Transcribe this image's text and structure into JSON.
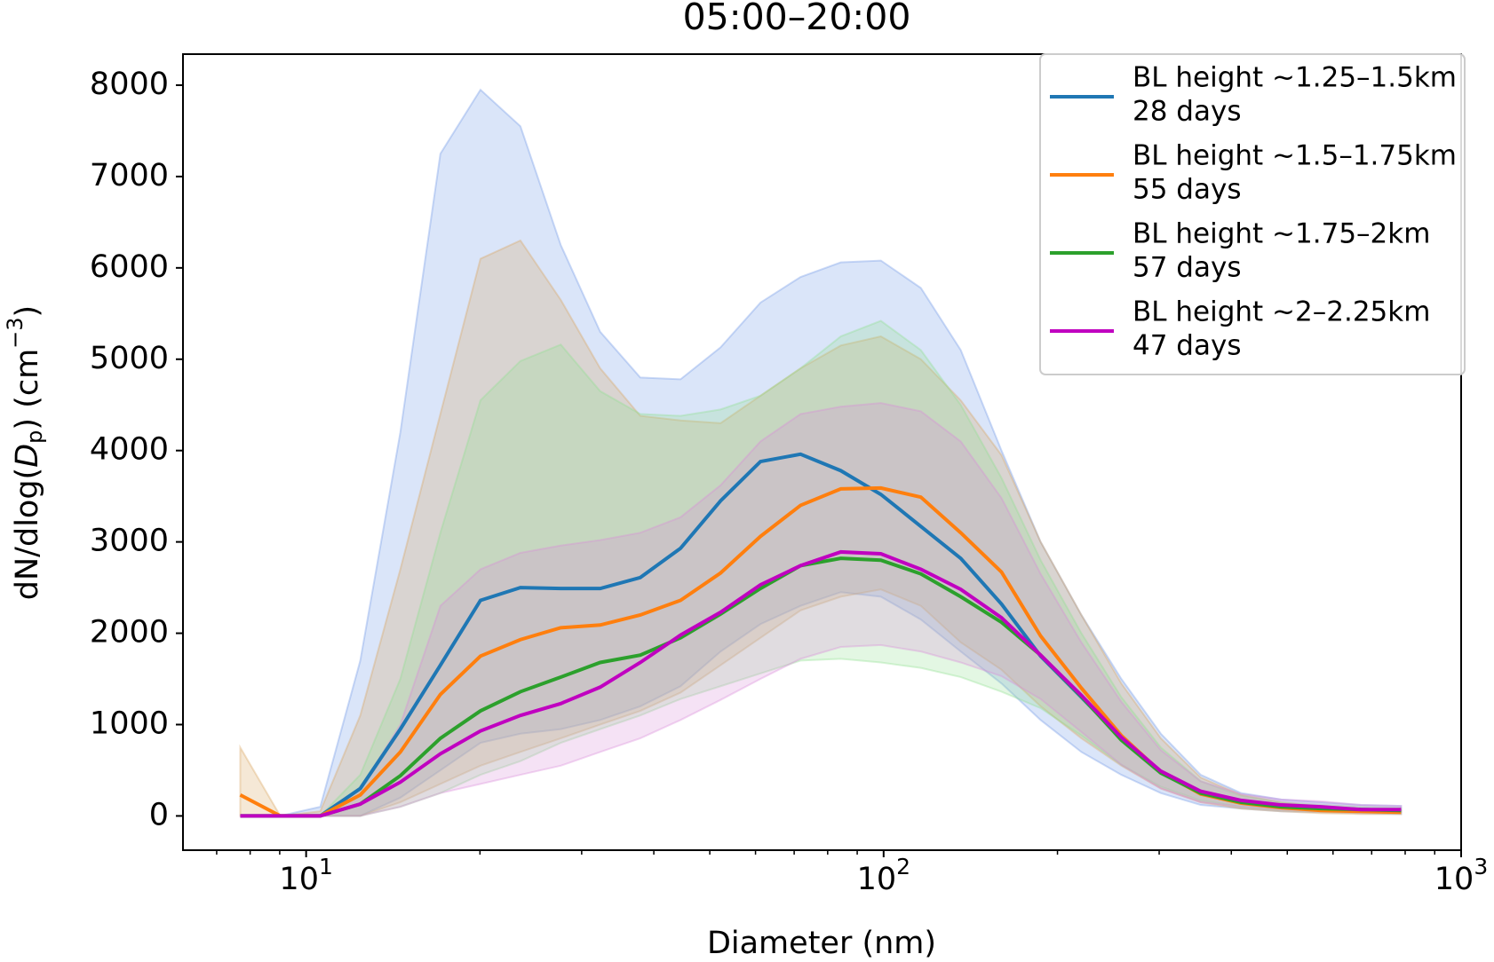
{
  "chart_data": {
    "type": "line",
    "title": "05:00–20:00",
    "xlabel": "Diameter (nm)",
    "ylabel": [
      "dN/dlog(",
      "D",
      "p",
      ") (cm",
      "−3",
      ")"
    ],
    "xscale": "log",
    "xlim": [
      6.12,
      1000
    ],
    "ylim": [
      -375,
      8340
    ],
    "xticks": [
      {
        "value": 10,
        "label": "10",
        "exponent": "1"
      },
      {
        "value": 100,
        "label": "10",
        "exponent": "2"
      },
      {
        "value": 1000,
        "label": "10",
        "exponent": "3"
      }
    ],
    "xminor_ticks": [
      7,
      8,
      9,
      20,
      30,
      40,
      50,
      60,
      70,
      80,
      90,
      200,
      300,
      400,
      500,
      600,
      700,
      800,
      900
    ],
    "yticks": [
      0,
      1000,
      2000,
      3000,
      4000,
      5000,
      6000,
      7000,
      8000
    ],
    "legend": "upper right",
    "x": [
      7.69,
      9.02,
      10.58,
      12.41,
      14.56,
      17.08,
      20.04,
      23.5,
      27.6,
      32.3,
      37.9,
      44.5,
      52.2,
      61.2,
      71.8,
      84.3,
      98.9,
      116,
      136,
      160,
      187,
      220,
      258,
      302,
      354,
      416,
      488,
      572,
      671,
      787
    ],
    "series": [
      {
        "name": "BL height ~1.25–1.5km",
        "days_label": "28 days",
        "color": "#1f77b4",
        "band_color": "#6d96e6",
        "values": [
          0,
          0,
          0,
          300,
          950,
          1650,
          2360,
          2500,
          2490,
          2490,
          2610,
          2930,
          3450,
          3880,
          3960,
          3780,
          3520,
          3170,
          2820,
          2320,
          1750,
          1300,
          850,
          480,
          260,
          160,
          110,
          90,
          70,
          60
        ],
        "upper": [
          0,
          0,
          100,
          1700,
          4200,
          7250,
          7950,
          7550,
          6250,
          5300,
          4800,
          4780,
          5130,
          5620,
          5900,
          6060,
          6080,
          5780,
          5100,
          4000,
          3000,
          2200,
          1500,
          900,
          450,
          250,
          180,
          150,
          120,
          110
        ],
        "lower": [
          0,
          0,
          0,
          0,
          200,
          500,
          800,
          900,
          950,
          1050,
          1200,
          1420,
          1800,
          2100,
          2300,
          2450,
          2400,
          2150,
          1800,
          1450,
          1050,
          700,
          450,
          250,
          120,
          80,
          50,
          40,
          30,
          20
        ]
      },
      {
        "name": "BL height ~1.5–1.75km",
        "days_label": "55 days",
        "color": "#ff7f0e",
        "band_color": "#d9a35c",
        "values": [
          230,
          0,
          0,
          230,
          700,
          1330,
          1750,
          1930,
          2060,
          2090,
          2200,
          2360,
          2660,
          3060,
          3400,
          3580,
          3590,
          3490,
          3100,
          2670,
          1970,
          1400,
          880,
          480,
          240,
          140,
          90,
          60,
          50,
          40
        ],
        "upper": [
          750,
          0,
          50,
          1100,
          2700,
          4400,
          6100,
          6300,
          5650,
          4900,
          4380,
          4330,
          4300,
          4600,
          4900,
          5150,
          5250,
          5000,
          4550,
          3950,
          3000,
          2200,
          1450,
          850,
          420,
          230,
          150,
          100,
          80,
          60
        ],
        "lower": [
          0,
          0,
          0,
          0,
          150,
          350,
          550,
          700,
          850,
          1000,
          1150,
          1350,
          1650,
          1950,
          2250,
          2400,
          2480,
          2300,
          1900,
          1600,
          1200,
          850,
          550,
          300,
          150,
          80,
          50,
          30,
          20,
          20
        ]
      },
      {
        "name": "BL height ~1.75–2km",
        "days_label": "57 days",
        "color": "#2ca02c",
        "band_color": "#8fe08f",
        "values": [
          0,
          0,
          0,
          130,
          440,
          850,
          1150,
          1360,
          1520,
          1680,
          1760,
          1950,
          2210,
          2490,
          2740,
          2820,
          2800,
          2650,
          2400,
          2120,
          1760,
          1310,
          830,
          470,
          250,
          150,
          100,
          80,
          70,
          60
        ],
        "upper": [
          0,
          0,
          0,
          450,
          1500,
          3100,
          4550,
          4980,
          5160,
          4650,
          4400,
          4380,
          4450,
          4600,
          4900,
          5250,
          5420,
          5100,
          4500,
          3700,
          2800,
          2000,
          1300,
          750,
          380,
          220,
          150,
          120,
          100,
          90
        ],
        "lower": [
          0,
          0,
          0,
          0,
          100,
          250,
          450,
          600,
          800,
          950,
          1100,
          1280,
          1420,
          1560,
          1700,
          1720,
          1680,
          1620,
          1520,
          1360,
          1180,
          880,
          560,
          320,
          170,
          100,
          70,
          60,
          50,
          40
        ]
      },
      {
        "name": "BL height ~2–2.25km",
        "days_label": "47 days",
        "color": "#c000c0",
        "band_color": "#d98ad9",
        "values": [
          0,
          0,
          0,
          130,
          370,
          680,
          930,
          1100,
          1230,
          1410,
          1680,
          1980,
          2230,
          2530,
          2740,
          2890,
          2870,
          2700,
          2480,
          2170,
          1760,
          1320,
          860,
          490,
          270,
          170,
          120,
          100,
          70,
          70
        ],
        "upper": [
          0,
          0,
          0,
          300,
          1000,
          2300,
          2700,
          2880,
          2960,
          3020,
          3100,
          3270,
          3620,
          4100,
          4400,
          4480,
          4520,
          4430,
          4100,
          3480,
          2650,
          1900,
          1250,
          720,
          380,
          240,
          180,
          160,
          120,
          110
        ],
        "lower": [
          0,
          0,
          0,
          0,
          100,
          250,
          350,
          450,
          550,
          700,
          850,
          1050,
          1270,
          1500,
          1720,
          1850,
          1870,
          1800,
          1680,
          1530,
          1280,
          920,
          560,
          300,
          150,
          100,
          70,
          60,
          40,
          40
        ]
      }
    ]
  }
}
